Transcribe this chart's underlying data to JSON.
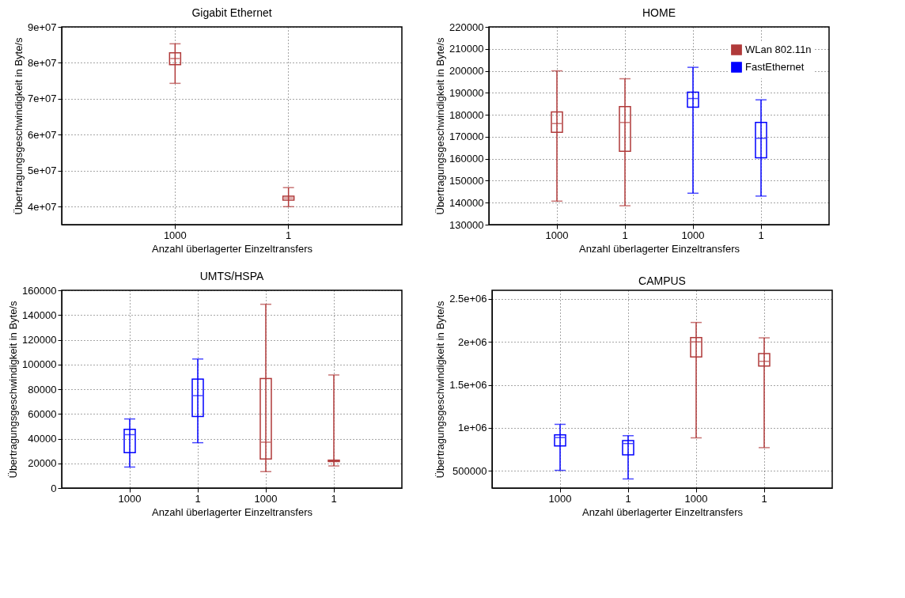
{
  "chart_data": [
    {
      "type": "box",
      "title": "Gigabit Ethernet",
      "xlabel": "Anzahl überlagerter Einzeltransfers",
      "ylabel": "Übertragungsgeschwindigkeit in Byte/s",
      "categories": [
        "1000",
        "1"
      ],
      "series": [
        {
          "color": "#b03a3a",
          "boxes": [
            {
              "low": 74300000,
              "q1": 79500000,
              "median": 81200000,
              "q3": 82800000,
              "high": 85300000
            },
            {
              "low": 40000000,
              "q1": 41800000,
              "median": 42400000,
              "q3": 42900000,
              "high": 45300000
            }
          ]
        }
      ],
      "ylim": [
        35000000,
        90000000
      ],
      "yticks": [
        {
          "value": 40000000,
          "label": "4e+07"
        },
        {
          "value": 50000000,
          "label": "5e+07"
        },
        {
          "value": 60000000,
          "label": "6e+07"
        },
        {
          "value": 70000000,
          "label": "7e+07"
        },
        {
          "value": 80000000,
          "label": "8e+07"
        },
        {
          "value": 90000000,
          "label": "9e+07"
        }
      ],
      "grid": true
    },
    {
      "type": "box",
      "title": "HOME",
      "xlabel": "Anzahl überlagerter Einzeltransfers",
      "ylabel": "Übertragungsgeschwindigkeit in Byte/s",
      "categories": [
        "1000",
        "1",
        "1000",
        "1"
      ],
      "series": [
        {
          "name": "WLan 802.11n",
          "color": "#b03a3a",
          "boxes": [
            {
              "low": 140700,
              "q1": 172000,
              "median": 176000,
              "q3": 181300,
              "high": 200000
            },
            {
              "low": 138600,
              "q1": 163400,
              "median": 176500,
              "q3": 183700,
              "high": 196400
            },
            null,
            null
          ]
        },
        {
          "name": "FastEthernet",
          "color": "#0000ff",
          "boxes": [
            null,
            null,
            {
              "low": 144300,
              "q1": 183500,
              "median": 187400,
              "q3": 190300,
              "high": 201600
            },
            {
              "low": 143000,
              "q1": 160400,
              "median": 169300,
              "q3": 176500,
              "high": 186800
            }
          ]
        }
      ],
      "ylim": [
        130000,
        220000
      ],
      "yticks": [
        130000,
        140000,
        150000,
        160000,
        170000,
        180000,
        190000,
        200000,
        210000,
        220000
      ],
      "grid": true,
      "legend": "top right"
    },
    {
      "type": "box",
      "title": "UMTS/HSPA",
      "xlabel": "Anzahl überlagerter Einzeltransfers",
      "ylabel": "Übertragungsgeschwindigkeit in Byte/s",
      "categories": [
        "1000",
        "1",
        "1000",
        "1"
      ],
      "series": [
        {
          "color": "#0000ff",
          "boxes": [
            {
              "low": 17000,
              "q1": 28600,
              "median": 43200,
              "q3": 47600,
              "high": 55900
            },
            {
              "low": 36700,
              "q1": 57900,
              "median": 74700,
              "q3": 88200,
              "high": 104400
            },
            null,
            null
          ]
        },
        {
          "color": "#b03a3a",
          "boxes": [
            null,
            null,
            {
              "low": 13300,
              "q1": 23600,
              "median": 37100,
              "q3": 88600,
              "high": 148700
            },
            {
              "low": 17900,
              "q1": 21400,
              "median": 22100,
              "q3": 22500,
              "high": 91500
            }
          ]
        }
      ],
      "ylim": [
        0,
        160000
      ],
      "yticks": [
        0,
        20000,
        40000,
        60000,
        80000,
        100000,
        120000,
        140000,
        160000
      ],
      "grid": true
    },
    {
      "type": "box",
      "title": "CAMPUS",
      "xlabel": "Anzahl überlagerter Einzeltransfers",
      "ylabel": "Übertragungsgeschwindigkeit in Byte/s",
      "categories": [
        "1000",
        "1",
        "1000",
        "1"
      ],
      "series": [
        {
          "color": "#0000ff",
          "boxes": [
            {
              "low": 506000,
              "q1": 789000,
              "median": 887000,
              "q3": 918000,
              "high": 1041000
            },
            {
              "low": 406000,
              "q1": 686000,
              "median": 818000,
              "q3": 852000,
              "high": 909000
            },
            null,
            null
          ]
        },
        {
          "color": "#b03a3a",
          "boxes": [
            null,
            null,
            {
              "low": 884000,
              "q1": 1824000,
              "median": 2000000,
              "q3": 2050000,
              "high": 2226000
            },
            {
              "low": 770000,
              "q1": 1720000,
              "median": 1774000,
              "q3": 1865000,
              "high": 2047000
            }
          ]
        }
      ],
      "ylim": [
        300000,
        2600000
      ],
      "yticks": [
        {
          "value": 500000,
          "label": "500000"
        },
        {
          "value": 1000000,
          "label": "1e+06"
        },
        {
          "value": 1500000,
          "label": "1.5e+06"
        },
        {
          "value": 2000000,
          "label": "2e+06"
        },
        {
          "value": 2500000,
          "label": "2.5e+06"
        }
      ],
      "grid": true
    }
  ]
}
